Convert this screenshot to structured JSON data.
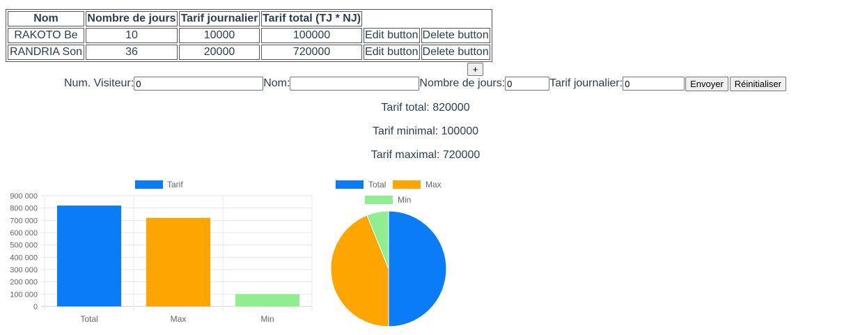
{
  "table": {
    "headers": [
      "Nom",
      "Nombre de jours",
      "Tarif journalier",
      "Tarif total (TJ * NJ)"
    ],
    "rows": [
      {
        "nom": "RAKOTO Be",
        "jours": "10",
        "tarif_journalier": "10000",
        "tarif_total": "100000",
        "edit": "Edit button",
        "delete": "Delete button"
      },
      {
        "nom": "RANDRIA Son",
        "jours": "36",
        "tarif_journalier": "20000",
        "tarif_total": "720000",
        "edit": "Edit button",
        "delete": "Delete button"
      }
    ]
  },
  "plus_label": "+",
  "form": {
    "num_visiteur_label": "Num. Visiteur:",
    "num_visiteur_value": "0",
    "nom_label": "Nom:",
    "nom_value": "",
    "jours_label": "Nombre de jours:",
    "jours_value": "0",
    "tarif_label": "Tarif journalier:",
    "tarif_value": "0",
    "submit_label": "Envoyer",
    "reset_label": "Réinitialiser"
  },
  "stats": {
    "total": "Tarif total: 820000",
    "min": "Tarif minimal: 100000",
    "max": "Tarif maximal: 720000"
  },
  "colors": {
    "total": "#0a7cf7",
    "max": "#ffa500",
    "min": "#90ee90"
  },
  "chart_data": [
    {
      "type": "bar",
      "categories": [
        "Total",
        "Max",
        "Min"
      ],
      "series": [
        {
          "name": "Tarif",
          "values": [
            820000,
            720000,
            100000
          ]
        }
      ],
      "ylim": [
        0,
        900000
      ],
      "yticks": [
        "0",
        "100 000",
        "200 000",
        "300 000",
        "400 000",
        "500 000",
        "600 000",
        "700 000",
        "800 000",
        "900 000"
      ],
      "legend": "top",
      "grid": true
    },
    {
      "type": "pie",
      "categories": [
        "Total",
        "Max",
        "Min"
      ],
      "values": [
        820000,
        720000,
        100000
      ],
      "legend": "top"
    }
  ]
}
